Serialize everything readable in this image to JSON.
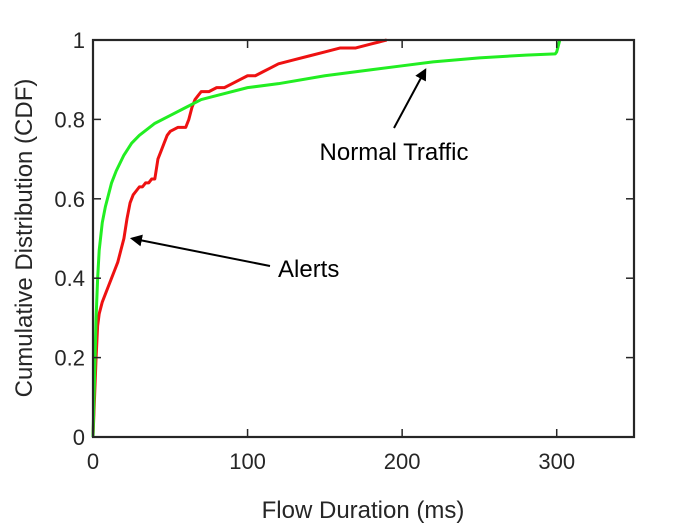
{
  "chart_data": {
    "type": "line",
    "xlabel": "Flow Duration (ms)",
    "ylabel": "Cumulative Distribution (CDF)",
    "xlim": [
      0,
      350
    ],
    "ylim": [
      0,
      1
    ],
    "xticks": [
      "0",
      "100",
      "200",
      "300"
    ],
    "yticks": [
      "0",
      "0.2",
      "0.4",
      "0.6",
      "0.8",
      "1"
    ],
    "grid": false,
    "series": [
      {
        "name": "Alerts",
        "color": "#ee1111",
        "x": [
          0,
          1,
          2,
          3,
          4,
          6,
          8,
          10,
          12,
          14,
          16,
          18,
          20,
          22,
          24,
          26,
          28,
          30,
          32,
          34,
          36,
          38,
          40,
          42,
          44,
          46,
          48,
          50,
          55,
          60,
          62,
          64,
          66,
          68,
          70,
          75,
          80,
          85,
          90,
          95,
          100,
          105,
          110,
          115,
          120,
          130,
          140,
          150,
          160,
          170,
          180,
          185,
          190
        ],
        "y": [
          0,
          0.1,
          0.2,
          0.28,
          0.31,
          0.34,
          0.36,
          0.38,
          0.4,
          0.42,
          0.44,
          0.47,
          0.5,
          0.55,
          0.59,
          0.61,
          0.62,
          0.63,
          0.63,
          0.64,
          0.64,
          0.65,
          0.65,
          0.7,
          0.72,
          0.74,
          0.76,
          0.77,
          0.78,
          0.78,
          0.8,
          0.83,
          0.85,
          0.86,
          0.87,
          0.87,
          0.88,
          0.88,
          0.89,
          0.9,
          0.91,
          0.91,
          0.92,
          0.93,
          0.94,
          0.95,
          0.96,
          0.97,
          0.98,
          0.98,
          0.99,
          0.995,
          1.0
        ]
      },
      {
        "name": "Normal Traffic",
        "color": "#22ee22",
        "x": [
          0,
          1,
          2,
          3,
          4,
          6,
          8,
          10,
          12,
          15,
          20,
          25,
          30,
          40,
          50,
          60,
          70,
          80,
          100,
          120,
          150,
          180,
          200,
          220,
          250,
          280,
          299,
          300,
          301,
          302
        ],
        "y": [
          0,
          0.15,
          0.3,
          0.4,
          0.47,
          0.54,
          0.58,
          0.61,
          0.64,
          0.67,
          0.71,
          0.74,
          0.76,
          0.79,
          0.81,
          0.83,
          0.85,
          0.86,
          0.88,
          0.89,
          0.91,
          0.925,
          0.935,
          0.945,
          0.955,
          0.962,
          0.965,
          0.97,
          0.985,
          1.0
        ]
      }
    ],
    "annotations": [
      {
        "text": "Normal Traffic",
        "target_x": 215,
        "target_y": 0.95
      },
      {
        "text": "Alerts",
        "target_x": 20,
        "target_y": 0.5
      }
    ]
  }
}
